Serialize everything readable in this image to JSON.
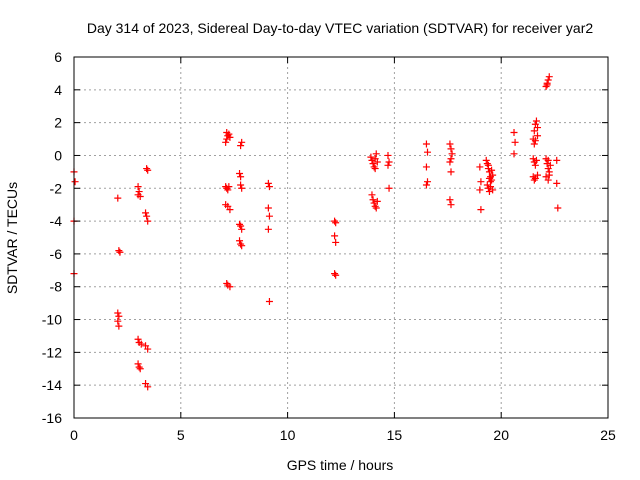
{
  "chart_data": {
    "type": "scatter",
    "title": "Day 314 of 2023, Sidereal Day-to-day VTEC variation (SDTVAR) for receiver yar2",
    "xlabel": "GPS time / hours",
    "ylabel": "SDTVAR / TECUs",
    "xlim": [
      0,
      25
    ],
    "ylim": [
      -16,
      6
    ],
    "xticks": [
      0,
      5,
      10,
      15,
      20,
      25
    ],
    "yticks": [
      -16,
      -14,
      -12,
      -10,
      -8,
      -6,
      -4,
      -2,
      0,
      2,
      4,
      6
    ],
    "grid": true,
    "marker": "plus",
    "color": "#ff0000",
    "series": [
      {
        "name": "SDTVAR",
        "points": [
          [
            0.0,
            -1.0
          ],
          [
            0.05,
            -1.6
          ],
          [
            0.0,
            -4.0
          ],
          [
            0.0,
            -7.2
          ],
          [
            2.05,
            -2.6
          ],
          [
            2.1,
            -5.8
          ],
          [
            2.15,
            -5.9
          ],
          [
            2.05,
            -9.6
          ],
          [
            2.1,
            -9.8
          ],
          [
            2.05,
            -10.1
          ],
          [
            2.1,
            -10.4
          ],
          [
            3.0,
            -1.9
          ],
          [
            3.05,
            -2.2
          ],
          [
            3.0,
            -2.4
          ],
          [
            3.1,
            -2.5
          ],
          [
            3.0,
            -11.2
          ],
          [
            3.05,
            -11.4
          ],
          [
            3.15,
            -11.5
          ],
          [
            3.0,
            -12.7
          ],
          [
            3.05,
            -12.9
          ],
          [
            3.1,
            -13.0
          ],
          [
            3.4,
            -0.8
          ],
          [
            3.45,
            -0.9
          ],
          [
            3.35,
            -3.5
          ],
          [
            3.4,
            -3.7
          ],
          [
            3.45,
            -4.0
          ],
          [
            3.35,
            -11.6
          ],
          [
            3.45,
            -11.8
          ],
          [
            3.35,
            -13.9
          ],
          [
            3.45,
            -14.1
          ],
          [
            7.1,
            0.8
          ],
          [
            7.15,
            1.0
          ],
          [
            7.2,
            1.2
          ],
          [
            7.25,
            1.3
          ],
          [
            7.15,
            1.4
          ],
          [
            7.3,
            1.1
          ],
          [
            7.1,
            -1.9
          ],
          [
            7.15,
            -2.0
          ],
          [
            7.2,
            -2.1
          ],
          [
            7.25,
            -1.9
          ],
          [
            7.1,
            -3.0
          ],
          [
            7.2,
            -3.1
          ],
          [
            7.3,
            -3.3
          ],
          [
            7.15,
            -7.8
          ],
          [
            7.2,
            -7.9
          ],
          [
            7.3,
            -8.0
          ],
          [
            7.8,
            0.6
          ],
          [
            7.85,
            0.8
          ],
          [
            7.75,
            -1.1
          ],
          [
            7.8,
            -1.3
          ],
          [
            7.8,
            -1.8
          ],
          [
            7.85,
            -2.0
          ],
          [
            7.75,
            -4.2
          ],
          [
            7.8,
            -4.3
          ],
          [
            7.85,
            -4.5
          ],
          [
            7.75,
            -5.2
          ],
          [
            7.8,
            -5.4
          ],
          [
            7.85,
            -5.5
          ],
          [
            9.1,
            -1.7
          ],
          [
            9.15,
            -1.9
          ],
          [
            9.1,
            -3.2
          ],
          [
            9.15,
            -3.7
          ],
          [
            9.1,
            -4.5
          ],
          [
            9.15,
            -8.9
          ],
          [
            12.2,
            -4.0
          ],
          [
            12.25,
            -4.1
          ],
          [
            12.2,
            -4.9
          ],
          [
            12.25,
            -5.3
          ],
          [
            12.2,
            -7.2
          ],
          [
            12.25,
            -7.3
          ],
          [
            13.9,
            -0.1
          ],
          [
            13.95,
            -0.3
          ],
          [
            14.0,
            -0.5
          ],
          [
            14.05,
            -0.7
          ],
          [
            14.1,
            -0.2
          ],
          [
            14.15,
            0.1
          ],
          [
            14.2,
            -0.4
          ],
          [
            14.1,
            -0.8
          ],
          [
            13.95,
            -2.4
          ],
          [
            14.0,
            -2.7
          ],
          [
            14.05,
            -2.9
          ],
          [
            14.1,
            -3.1
          ],
          [
            14.15,
            -3.2
          ],
          [
            14.2,
            -2.8
          ],
          [
            14.7,
            0.0
          ],
          [
            14.75,
            -0.4
          ],
          [
            14.7,
            -0.6
          ],
          [
            14.75,
            -2.0
          ],
          [
            16.5,
            0.7
          ],
          [
            16.55,
            0.2
          ],
          [
            16.5,
            -0.7
          ],
          [
            16.55,
            -1.6
          ],
          [
            16.5,
            -1.8
          ],
          [
            17.6,
            0.7
          ],
          [
            17.65,
            0.4
          ],
          [
            17.7,
            0.1
          ],
          [
            17.65,
            -0.2
          ],
          [
            17.6,
            -0.4
          ],
          [
            17.65,
            -1.0
          ],
          [
            17.6,
            -2.7
          ],
          [
            17.65,
            -3.0
          ],
          [
            19.0,
            -0.7
          ],
          [
            19.05,
            -1.6
          ],
          [
            19.0,
            -2.1
          ],
          [
            19.05,
            -3.3
          ],
          [
            19.3,
            -0.3
          ],
          [
            19.35,
            -0.5
          ],
          [
            19.4,
            -0.8
          ],
          [
            19.45,
            -1.0
          ],
          [
            19.5,
            -1.3
          ],
          [
            19.55,
            -1.5
          ],
          [
            19.35,
            -1.8
          ],
          [
            19.4,
            -2.0
          ],
          [
            19.45,
            -2.2
          ],
          [
            19.5,
            -1.6
          ],
          [
            19.55,
            -0.9
          ],
          [
            19.6,
            -1.2
          ],
          [
            19.4,
            -0.6
          ],
          [
            19.5,
            -1.9
          ],
          [
            19.6,
            -2.1
          ],
          [
            19.45,
            -1.4
          ],
          [
            20.6,
            1.4
          ],
          [
            20.65,
            0.8
          ],
          [
            20.6,
            0.1
          ],
          [
            21.5,
            1.0
          ],
          [
            21.55,
            1.5
          ],
          [
            21.6,
            1.9
          ],
          [
            21.65,
            2.1
          ],
          [
            21.7,
            1.7
          ],
          [
            21.55,
            0.7
          ],
          [
            21.6,
            0.9
          ],
          [
            21.7,
            1.2
          ],
          [
            21.5,
            -0.2
          ],
          [
            21.55,
            -0.4
          ],
          [
            21.6,
            -0.6
          ],
          [
            21.65,
            -0.3
          ],
          [
            21.5,
            -1.3
          ],
          [
            21.55,
            -1.5
          ],
          [
            21.6,
            -1.4
          ],
          [
            21.7,
            -1.2
          ],
          [
            22.1,
            4.2
          ],
          [
            22.15,
            4.4
          ],
          [
            22.2,
            4.6
          ],
          [
            22.25,
            4.8
          ],
          [
            22.15,
            4.3
          ],
          [
            22.1,
            -0.2
          ],
          [
            22.15,
            -0.5
          ],
          [
            22.2,
            -0.8
          ],
          [
            22.25,
            -1.0
          ],
          [
            22.3,
            -0.6
          ],
          [
            22.2,
            -0.3
          ],
          [
            22.1,
            -1.3
          ],
          [
            22.2,
            -1.5
          ],
          [
            22.25,
            -1.2
          ],
          [
            22.6,
            -0.3
          ],
          [
            22.6,
            -1.7
          ],
          [
            22.65,
            -3.2
          ]
        ]
      }
    ]
  }
}
